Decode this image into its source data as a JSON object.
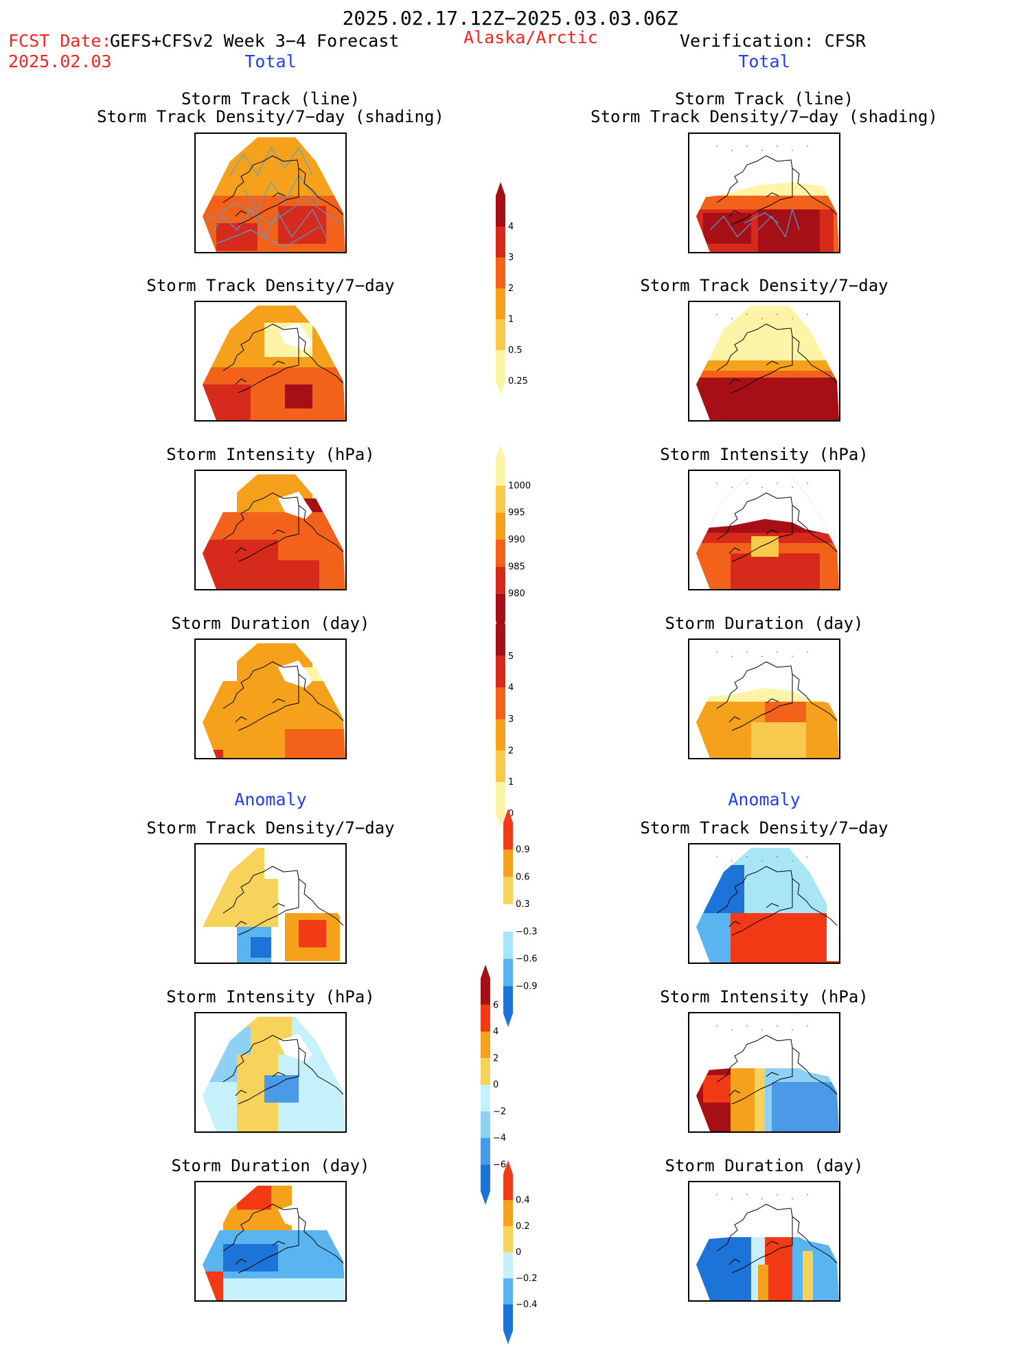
{
  "header": {
    "period": "2025.02.17.12Z−2025.03.03.06Z",
    "fcst_prefix": "FCST Date:",
    "fcst_model": "GEFS+CFSv2 Week 3−4 Forecast",
    "fcst_date": "2025.02.03",
    "region": "Alaska/Arctic",
    "verification": "Verification: CFSR",
    "left_total": "Total",
    "right_total": "Total",
    "left_anomaly": "Anomaly",
    "right_anomaly": "Anomaly"
  },
  "panels": {
    "total": [
      {
        "title1": "Storm Track (line)",
        "title2": "Storm Track Density/7−day (shading)"
      },
      {
        "title1": "",
        "title2": "Storm Track Density/7−day"
      },
      {
        "title1": "",
        "title2": "Storm Intensity (hPa)"
      },
      {
        "title1": "",
        "title2": "Storm Duration (day)"
      }
    ],
    "anomaly": [
      {
        "title": "Storm Track Density/7−day"
      },
      {
        "title": "Storm Intensity (hPa)"
      },
      {
        "title": "Storm Duration (day)"
      }
    ]
  },
  "colorbars": {
    "density": {
      "labels": [
        "4",
        "3",
        "2",
        "1",
        "0.5",
        "0.25"
      ],
      "colors": [
        "#a50f15",
        "#d62a1c",
        "#f2621a",
        "#f5a11c",
        "#f7c94d",
        "#fdf4a8"
      ]
    },
    "intensity": {
      "labels": [
        "1000",
        "995",
        "990",
        "985",
        "980"
      ],
      "colors": [
        "#fdf4a8",
        "#f7c94d",
        "#f5a11c",
        "#f2621a",
        "#d62a1c",
        "#a50f15"
      ]
    },
    "duration": {
      "labels": [
        "5",
        "4",
        "3",
        "2",
        "1",
        "0"
      ],
      "colors": [
        "#a50f15",
        "#d62a1c",
        "#f2621a",
        "#f5a11c",
        "#f7c94d",
        "#fdf4a8"
      ]
    },
    "density_anom": {
      "labels": [
        "0.9",
        "0.6",
        "0.3",
        "−0.3",
        "−0.6",
        "−0.9"
      ],
      "colors": [
        "#f23a16",
        "#f5a11c",
        "#f7d35c",
        "#ffffff",
        "#a8e6f5",
        "#5ab4f0",
        "#1d74d8"
      ]
    },
    "intensity_anom": {
      "labels": [
        "6",
        "4",
        "2",
        "0",
        "−2",
        "−4",
        "−6"
      ],
      "colors": [
        "#a50f15",
        "#f23a16",
        "#f5a11c",
        "#f7d35c",
        "#c6f0fa",
        "#8fd0f5",
        "#4a9ae8",
        "#1d74d8"
      ]
    },
    "duration_anom": {
      "labels": [
        "0.4",
        "0.2",
        "0",
        "−0.2",
        "−0.4"
      ],
      "colors": [
        "#f23a16",
        "#f5a11c",
        "#f7d35c",
        "#c6f0fa",
        "#5ab4f0",
        "#1d74d8"
      ]
    }
  }
}
